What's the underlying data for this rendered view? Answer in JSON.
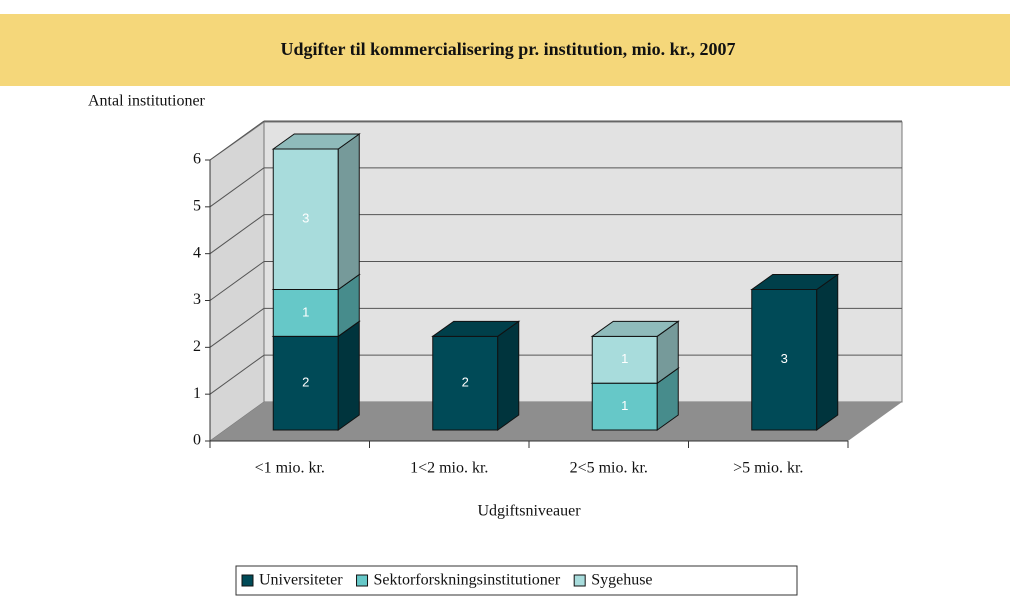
{
  "chart_data": {
    "type": "bar3d_stacked",
    "title": "Udgifter til kommercialisering pr. institution, mio. kr., 2007",
    "y_label": "Antal institutioner",
    "x_label": "Udgiftsniveauer",
    "categories": [
      "<1 mio. kr.",
      "1<2 mio. kr.",
      "2<5 mio. kr.",
      ">5 mio. kr."
    ],
    "series": [
      {
        "name": "Universiteter",
        "color": "#004a57",
        "values": [
          2,
          2,
          0,
          3
        ]
      },
      {
        "name": "Sektorforskningsinstitutioner",
        "color": "#66c8c8",
        "values": [
          1,
          0,
          1,
          0
        ]
      },
      {
        "name": "Sygehuse",
        "color": "#a8dcdc",
        "values": [
          3,
          0,
          1,
          0
        ]
      }
    ],
    "ylim": [
      0,
      6
    ],
    "yticks": [
      0,
      1,
      2,
      3,
      4,
      5,
      6
    ],
    "grid": true
  }
}
